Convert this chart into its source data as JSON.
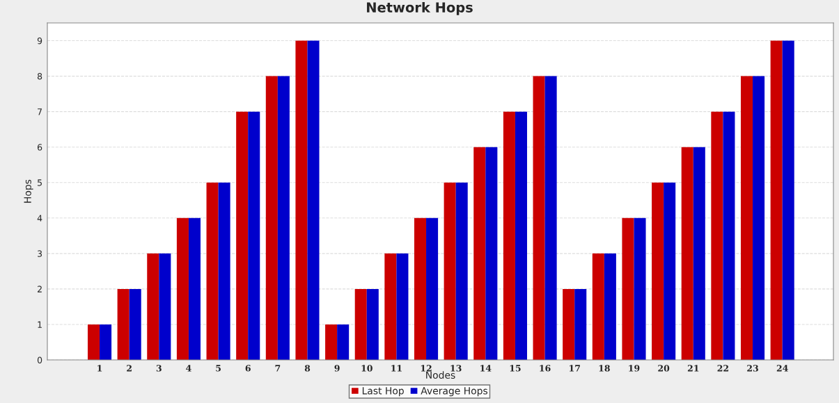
{
  "chart_data": {
    "type": "bar",
    "title": "Network Hops",
    "xlabel": "Nodes",
    "ylabel": "Hops",
    "categories": [
      "1",
      "2",
      "3",
      "4",
      "5",
      "6",
      "7",
      "8",
      "9",
      "10",
      "11",
      "12",
      "13",
      "14",
      "15",
      "16",
      "17",
      "18",
      "19",
      "20",
      "21",
      "22",
      "23",
      "24"
    ],
    "series": [
      {
        "name": "Last Hop",
        "color": "#cc0000",
        "values": [
          1,
          2,
          3,
          4,
          5,
          7,
          8,
          9,
          1,
          2,
          3,
          4,
          5,
          6,
          7,
          8,
          2,
          3,
          4,
          5,
          6,
          7,
          8,
          9
        ]
      },
      {
        "name": "Average Hops",
        "color": "#0000cc",
        "values": [
          1,
          2,
          3,
          4,
          5,
          7,
          8,
          9,
          1,
          2,
          3,
          4,
          5,
          6,
          7,
          8,
          2,
          3,
          4,
          5,
          6,
          7,
          8,
          9
        ]
      }
    ],
    "ylim": [
      0,
      9.5
    ],
    "yticks": [
      0,
      1,
      2,
      3,
      4,
      5,
      6,
      7,
      8,
      9
    ],
    "grid": "y",
    "legend": "bottom"
  }
}
